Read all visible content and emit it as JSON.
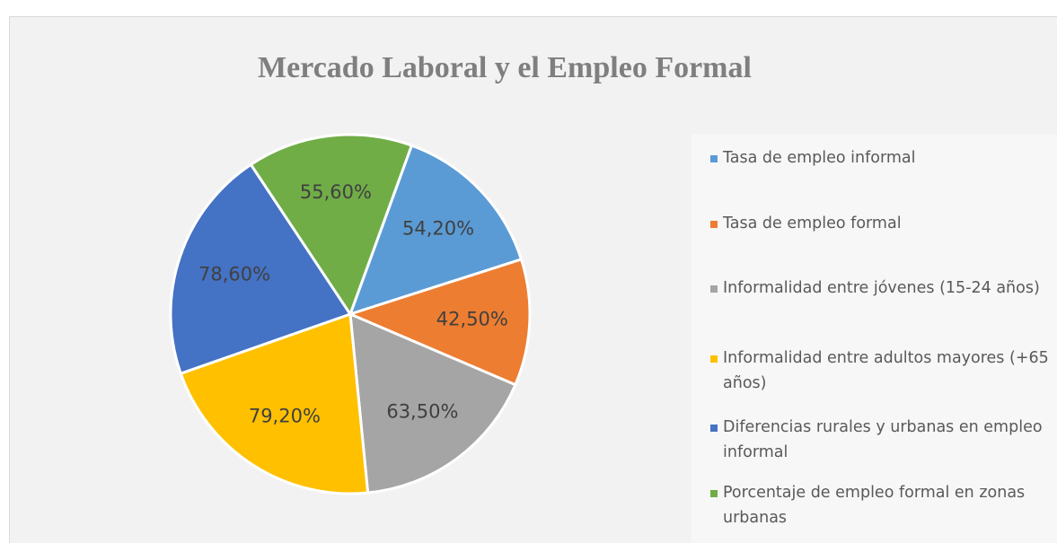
{
  "chart_data": {
    "type": "pie",
    "title": "Mercado Laboral y el Empleo Formal",
    "categories": [
      "Tasa de empleo informal",
      "Tasa de empleo formal",
      "Informalidad entre jóvenes (15-24 años)",
      "Informalidad entre adultos mayores (+65 años)",
      "Diferencias rurales y urbanas en empleo informal",
      "Porcentaje de empleo formal en zonas urbanas"
    ],
    "values": [
      54.2,
      42.5,
      63.5,
      79.2,
      78.6,
      55.6
    ],
    "value_labels": [
      "54,20%",
      "42,50%",
      "63,50%",
      "79,20%",
      "78,60%",
      "55,60%"
    ],
    "colors": [
      "#5b9bd5",
      "#ed7d31",
      "#a5a5a5",
      "#ffc000",
      "#4472c4",
      "#70ad47"
    ],
    "legend": "right"
  }
}
